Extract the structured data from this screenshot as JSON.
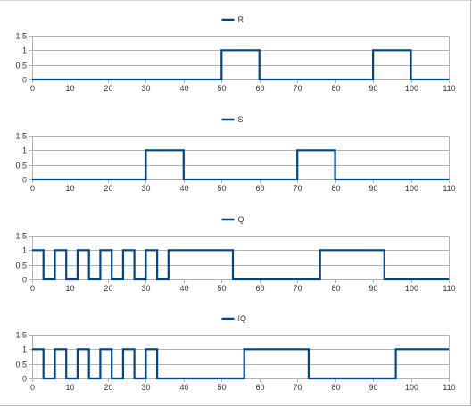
{
  "chart_data": [
    {
      "type": "line",
      "step": true,
      "series": [
        {
          "name": "R",
          "x": [
            0,
            50,
            50,
            60,
            60,
            90,
            90,
            100,
            100,
            110
          ],
          "values": [
            0,
            0,
            1,
            1,
            0,
            0,
            1,
            1,
            0,
            0
          ]
        }
      ],
      "xlim": [
        0,
        110
      ],
      "ylim": [
        0,
        1.5
      ],
      "xticks": [
        "0",
        "10",
        "20",
        "30",
        "40",
        "50",
        "60",
        "70",
        "80",
        "90",
        "100",
        "110"
      ],
      "yticks": [
        "0",
        "0.5",
        "1",
        "1.5"
      ],
      "grid": true,
      "legend": "top-center",
      "color": "#004586"
    },
    {
      "type": "line",
      "step": true,
      "series": [
        {
          "name": "S",
          "x": [
            0,
            30,
            30,
            40,
            40,
            70,
            70,
            80,
            80,
            110
          ],
          "values": [
            0,
            0,
            1,
            1,
            0,
            0,
            1,
            1,
            0,
            0
          ]
        }
      ],
      "xlim": [
        0,
        110
      ],
      "ylim": [
        0,
        1.5
      ],
      "xticks": [
        "0",
        "10",
        "20",
        "30",
        "40",
        "50",
        "60",
        "70",
        "80",
        "90",
        "100",
        "110"
      ],
      "yticks": [
        "0",
        "0.5",
        "1",
        "1.5"
      ],
      "grid": true,
      "legend": "top-center",
      "color": "#004586"
    },
    {
      "type": "line",
      "step": true,
      "series": [
        {
          "name": "Q",
          "x": [
            0,
            3,
            3,
            6,
            6,
            9,
            9,
            12,
            12,
            15,
            15,
            18,
            18,
            21,
            21,
            24,
            24,
            27,
            27,
            30,
            30,
            33,
            33,
            36,
            36,
            53,
            53,
            76,
            76,
            93,
            93,
            110
          ],
          "values": [
            1,
            1,
            0,
            0,
            1,
            1,
            0,
            0,
            1,
            1,
            0,
            0,
            1,
            1,
            0,
            0,
            1,
            1,
            0,
            0,
            1,
            1,
            0,
            0,
            1,
            1,
            0,
            0,
            1,
            1,
            0,
            0
          ]
        }
      ],
      "xlim": [
        0,
        110
      ],
      "ylim": [
        0,
        1.5
      ],
      "xticks": [
        "0",
        "10",
        "20",
        "30",
        "40",
        "50",
        "60",
        "70",
        "80",
        "90",
        "100",
        "110"
      ],
      "yticks": [
        "0",
        "0.5",
        "1",
        "1.5"
      ],
      "grid": true,
      "legend": "top-center",
      "color": "#004586"
    },
    {
      "type": "line",
      "step": true,
      "series": [
        {
          "name": "!Q",
          "x": [
            0,
            3,
            3,
            6,
            6,
            9,
            9,
            12,
            12,
            15,
            15,
            18,
            18,
            21,
            21,
            24,
            24,
            27,
            27,
            30,
            30,
            33,
            33,
            56,
            56,
            73,
            73,
            96,
            96,
            110
          ],
          "values": [
            1,
            1,
            0,
            0,
            1,
            1,
            0,
            0,
            1,
            1,
            0,
            0,
            1,
            1,
            0,
            0,
            1,
            1,
            0,
            0,
            1,
            1,
            0,
            0,
            1,
            1,
            0,
            0,
            1,
            1
          ]
        }
      ],
      "xlim": [
        0,
        110
      ],
      "ylim": [
        0,
        1.5
      ],
      "xticks": [
        "0",
        "10",
        "20",
        "30",
        "40",
        "50",
        "60",
        "70",
        "80",
        "90",
        "100",
        "110"
      ],
      "yticks": [
        "0",
        "0.5",
        "1",
        "1.5"
      ],
      "grid": true,
      "legend": "top-center",
      "color": "#004586"
    }
  ]
}
